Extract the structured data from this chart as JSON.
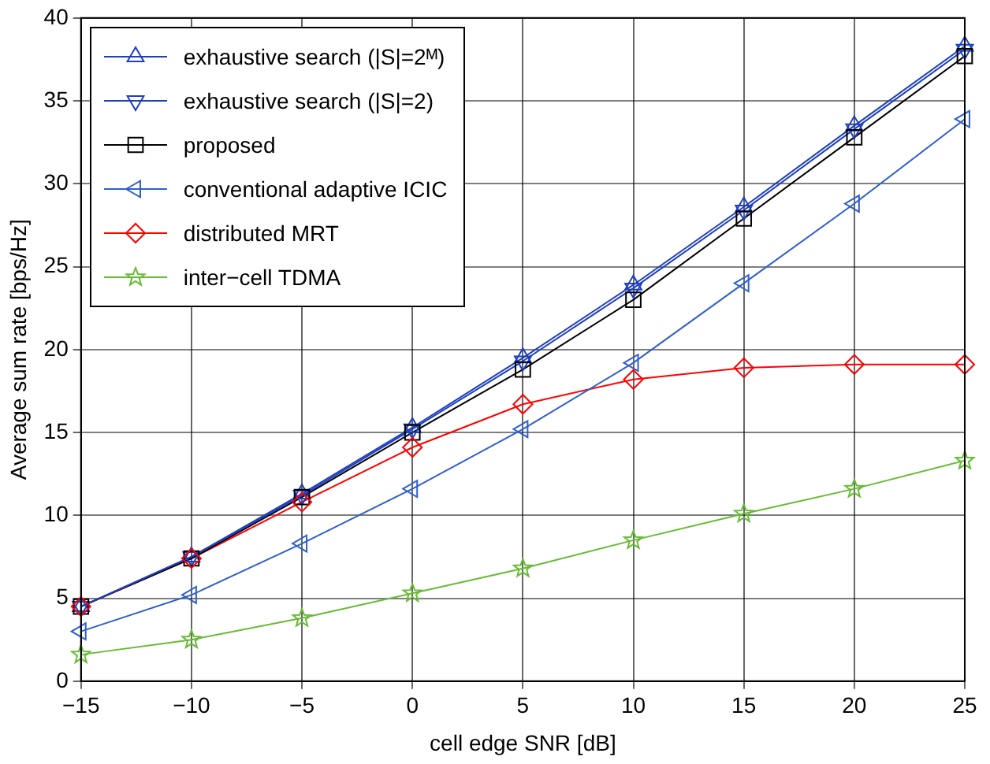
{
  "chart_data": {
    "type": "line",
    "xlabel": "cell edge SNR [dB]",
    "ylabel": "Average sum rate [bps/Hz]",
    "x": [
      -15,
      -10,
      -5,
      0,
      5,
      10,
      15,
      20,
      25
    ],
    "xlim": [
      -15,
      25
    ],
    "xticks": [
      {
        "value": -15,
        "label": "−15"
      },
      {
        "value": -10,
        "label": "−10"
      },
      {
        "value": -5,
        "label": "−5"
      },
      0,
      5,
      10,
      15,
      20,
      25
    ],
    "ylim": [
      0,
      40
    ],
    "yticks": [
      0,
      5,
      10,
      15,
      20,
      25,
      30,
      35,
      40
    ],
    "grid": true,
    "legend": "top left",
    "line_style": "solid",
    "series": [
      {
        "name": "exhaustive search (|S|=2ᴹ)",
        "color": "#1f3fbf",
        "marker": "triangle",
        "values": [
          4.5,
          7.5,
          11.3,
          15.3,
          19.5,
          23.9,
          28.6,
          33.5,
          38.3
        ]
      },
      {
        "name": "exhaustive search (|S|=2)",
        "color": "#1f3fbf",
        "marker": "triangle-down",
        "values": [
          4.5,
          7.5,
          11.2,
          15.2,
          19.3,
          23.7,
          28.4,
          33.3,
          38.1
        ]
      },
      {
        "name": "proposed",
        "color": "#000000",
        "marker": "square",
        "values": [
          4.5,
          7.4,
          11.1,
          15.0,
          18.8,
          23.0,
          27.9,
          32.8,
          37.7
        ]
      },
      {
        "name": "conventional adaptive ICIC",
        "color": "#2f5fcf",
        "marker": "triangle-left",
        "values": [
          3.0,
          5.2,
          8.3,
          11.6,
          15.2,
          19.2,
          24.0,
          28.8,
          33.9
        ]
      },
      {
        "name": "distributed MRT",
        "color": "#ff0000",
        "marker": "diamond",
        "values": [
          4.5,
          7.4,
          10.8,
          14.1,
          16.7,
          18.2,
          18.9,
          19.1,
          19.1
        ]
      },
      {
        "name": "inter−cell TDMA",
        "color": "#66bb33",
        "marker": "star",
        "values": [
          1.6,
          2.5,
          3.8,
          5.3,
          6.8,
          8.5,
          10.1,
          11.6,
          13.3
        ]
      }
    ]
  }
}
